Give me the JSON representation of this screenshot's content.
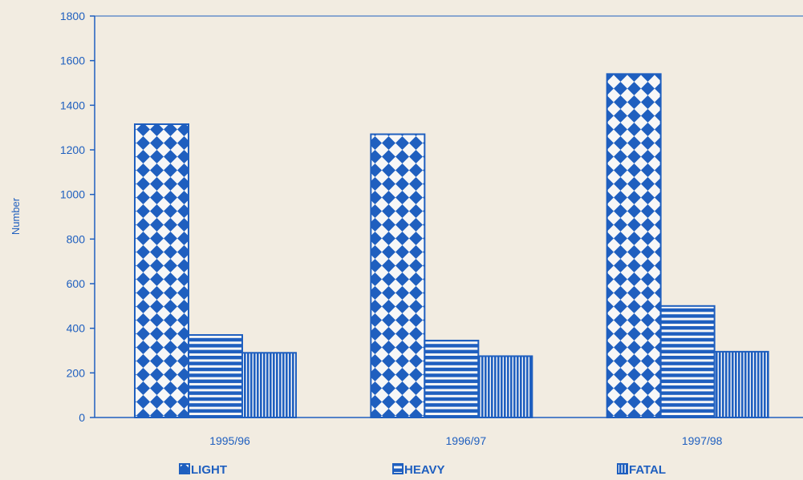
{
  "chart_data": {
    "type": "bar",
    "title": "",
    "xlabel": "",
    "ylabel": "Number",
    "ylim": [
      0,
      1800
    ],
    "yticks": [
      0,
      200,
      400,
      600,
      800,
      1000,
      1200,
      1400,
      1600,
      1800
    ],
    "categories": [
      "1995/96",
      "1996/97",
      "1997/98"
    ],
    "series": [
      {
        "name": "LIGHT",
        "values": [
          1315,
          1270,
          1540
        ],
        "pattern": "checker"
      },
      {
        "name": "HEAVY",
        "values": [
          370,
          345,
          500
        ],
        "pattern": "horizontal-lines"
      },
      {
        "name": "FATAL",
        "values": [
          290,
          275,
          295
        ],
        "pattern": "vertical-lines"
      }
    ],
    "legend_position": "bottom",
    "grid": false
  },
  "colors": {
    "bar_blue": "#1f5fbf",
    "background": "#f2ece1"
  }
}
